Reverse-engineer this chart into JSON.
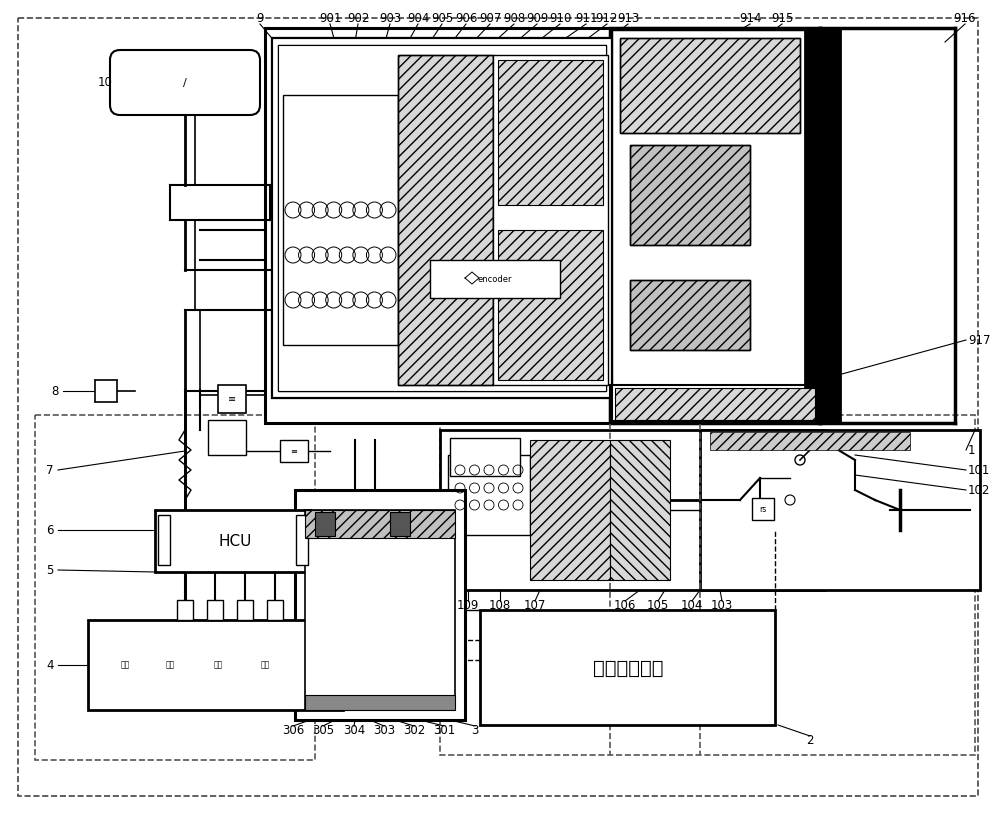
{
  "bg_color": "#ffffff",
  "lc": "#000000",
  "figsize": [
    10.0,
    8.13
  ],
  "dpi": 100,
  "label_fs": 8.5,
  "small_fs": 6.5,
  "wheel_labels": [
    "右后",
    "左后",
    "右前",
    "左前"
  ],
  "ecu_text": "电子控制单元"
}
